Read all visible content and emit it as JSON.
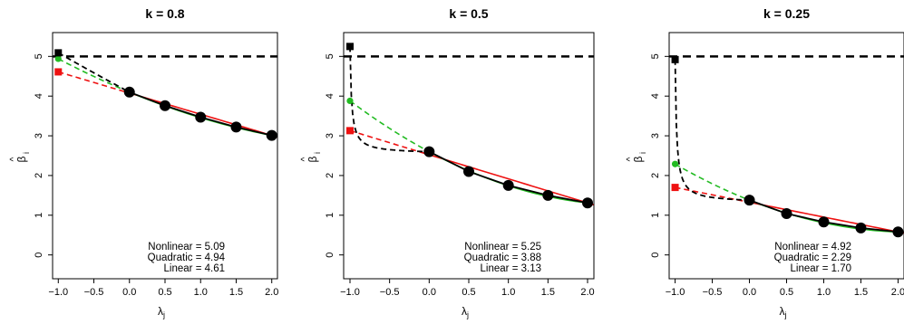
{
  "chart_data": [
    {
      "type": "line",
      "title": "k = 0.8",
      "xlabel": "λ",
      "xlabel_sub": "j",
      "ylabel": "β",
      "ylabel_hat": "^",
      "ylabel_sub": "i",
      "xlim": [
        -1.08,
        2.08
      ],
      "ylim": [
        -0.6,
        5.6
      ],
      "xticks": [
        -1.0,
        -0.5,
        0.0,
        0.5,
        1.0,
        1.5,
        2.0
      ],
      "xtick_labels": [
        "−1.0",
        "−0.5",
        "0.0",
        "0.5",
        "1.0",
        "1.5",
        "2.0"
      ],
      "yticks": [
        0,
        1,
        2,
        3,
        4,
        5
      ],
      "ytick_labels": [
        "0",
        "1",
        "2",
        "3",
        "4",
        "5"
      ],
      "true_value": 5,
      "points": {
        "x": [
          0.0,
          0.5,
          1.0,
          1.5,
          2.0
        ],
        "y": [
          4.1,
          3.76,
          3.47,
          3.22,
          3.01
        ]
      },
      "series": [
        {
          "name": "Nonlinear",
          "color": "#000000",
          "extrapolation": 5.09,
          "display": "5.09"
        },
        {
          "name": "Quadratic",
          "color": "#22bb22",
          "extrapolation": 4.94,
          "display": "4.94"
        },
        {
          "name": "Linear",
          "color": "#ee1111",
          "extrapolation": 4.61,
          "display": "4.61"
        }
      ]
    },
    {
      "type": "line",
      "title": "k = 0.5",
      "xlabel": "λ",
      "xlabel_sub": "j",
      "ylabel": "β",
      "ylabel_hat": "^",
      "ylabel_sub": "i",
      "xlim": [
        -1.08,
        2.08
      ],
      "ylim": [
        -0.6,
        5.6
      ],
      "xticks": [
        -1.0,
        -0.5,
        0.0,
        0.5,
        1.0,
        1.5,
        2.0
      ],
      "xtick_labels": [
        "−1.0",
        "−0.5",
        "0.0",
        "0.5",
        "1.0",
        "1.5",
        "2.0"
      ],
      "yticks": [
        0,
        1,
        2,
        3,
        4,
        5
      ],
      "ytick_labels": [
        "0",
        "1",
        "2",
        "3",
        "4",
        "5"
      ],
      "true_value": 5,
      "points": {
        "x": [
          0.0,
          0.5,
          1.0,
          1.5,
          2.0
        ],
        "y": [
          2.6,
          2.1,
          1.75,
          1.5,
          1.31
        ]
      },
      "series": [
        {
          "name": "Nonlinear",
          "color": "#000000",
          "extrapolation": 5.25,
          "display": "5.25"
        },
        {
          "name": "Quadratic",
          "color": "#22bb22",
          "extrapolation": 3.88,
          "display": "3.88"
        },
        {
          "name": "Linear",
          "color": "#ee1111",
          "extrapolation": 3.13,
          "display": "3.13"
        }
      ]
    },
    {
      "type": "line",
      "title": "k = 0.25",
      "xlabel": "λ",
      "xlabel_sub": "j",
      "ylabel": "β",
      "ylabel_hat": "^",
      "ylabel_sub": "i",
      "xlim": [
        -1.08,
        2.08
      ],
      "ylim": [
        -0.6,
        5.6
      ],
      "xticks": [
        -1.0,
        -0.5,
        0.0,
        0.5,
        1.0,
        1.5,
        2.0
      ],
      "xtick_labels": [
        "−1.0",
        "−0.5",
        "0.0",
        "0.5",
        "1.0",
        "1.5",
        "2.0"
      ],
      "yticks": [
        0,
        1,
        2,
        3,
        4,
        5
      ],
      "ytick_labels": [
        "0",
        "1",
        "2",
        "3",
        "4",
        "5"
      ],
      "true_value": 5,
      "points": {
        "x": [
          0.0,
          0.5,
          1.0,
          1.5,
          2.0
        ],
        "y": [
          1.38,
          1.04,
          0.83,
          0.68,
          0.58
        ]
      },
      "series": [
        {
          "name": "Nonlinear",
          "color": "#000000",
          "extrapolation": 4.92,
          "display": "4.92"
        },
        {
          "name": "Quadratic",
          "color": "#22bb22",
          "extrapolation": 2.29,
          "display": "2.29"
        },
        {
          "name": "Linear",
          "color": "#ee1111",
          "extrapolation": 1.7,
          "display": "1.70"
        }
      ]
    }
  ]
}
